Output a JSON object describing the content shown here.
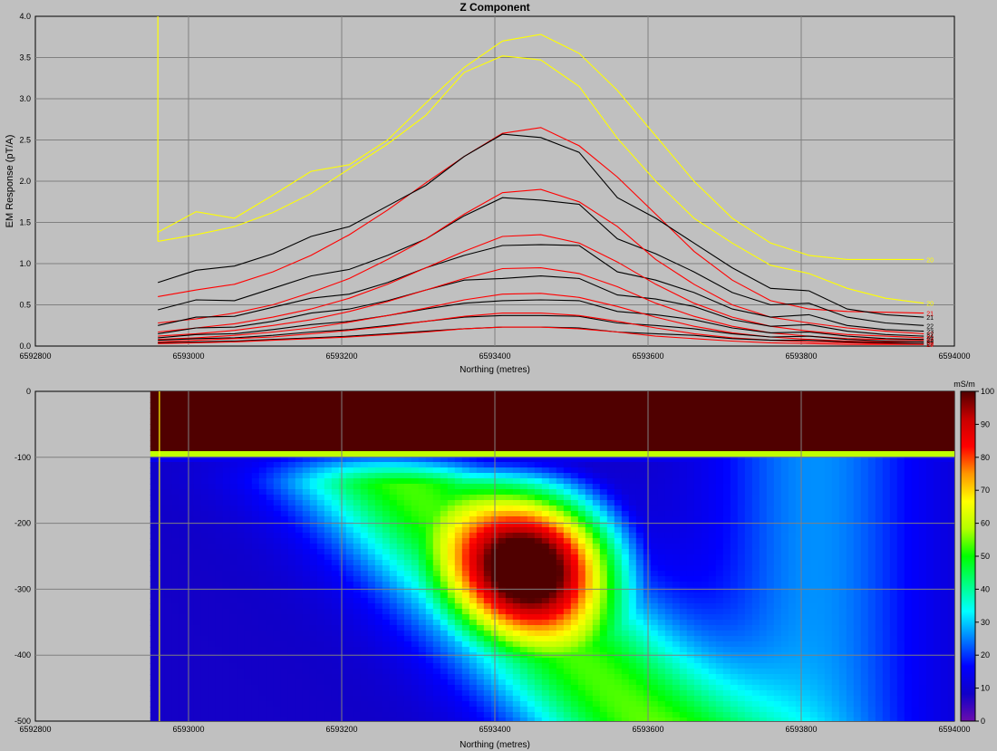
{
  "chart_data": [
    {
      "type": "line",
      "title": "Z Component",
      "xlabel": "Northing (metres)",
      "ylabel": "EM Response (pT/A)",
      "xlim": [
        6592800,
        6594000
      ],
      "ylim": [
        0,
        4.0
      ],
      "xticks": [
        6592800,
        6593000,
        6593200,
        6593400,
        6593600,
        6593800,
        6594000
      ],
      "yticks": [
        0.0,
        0.5,
        1.0,
        1.5,
        2.0,
        2.5,
        3.0,
        3.5,
        4.0
      ],
      "grid": true,
      "x": [
        6592960,
        6593010,
        6593060,
        6593110,
        6593160,
        6593210,
        6593260,
        6593310,
        6593360,
        6593410,
        6593460,
        6593510,
        6593560,
        6593610,
        6593660,
        6593710,
        6593760,
        6593810,
        6593860,
        6593910,
        6593960
      ],
      "series": [
        {
          "name": "",
          "color": "#ffff00",
          "values": [
            1.38,
            1.63,
            1.55,
            1.83,
            2.12,
            2.2,
            2.5,
            2.95,
            3.38,
            3.7,
            3.78,
            3.55,
            3.1,
            2.55,
            2.0,
            1.55,
            1.25,
            1.1,
            1.05,
            1.05,
            1.05
          ],
          "end_label": "20"
        },
        {
          "name": "",
          "color": "#ffff00",
          "values": [
            1.27,
            1.35,
            1.45,
            1.62,
            1.85,
            2.15,
            2.45,
            2.8,
            3.32,
            3.52,
            3.47,
            3.15,
            2.52,
            2.0,
            1.55,
            1.25,
            0.98,
            0.88,
            0.7,
            0.58,
            0.52
          ],
          "end_label": "20"
        },
        {
          "name": "",
          "color": "#ff0000",
          "values": [
            0.6,
            0.68,
            0.75,
            0.9,
            1.1,
            1.35,
            1.65,
            1.98,
            2.3,
            2.58,
            2.65,
            2.43,
            2.05,
            1.6,
            1.15,
            0.8,
            0.55,
            0.45,
            0.42,
            0.41,
            0.4
          ],
          "end_label": "21"
        },
        {
          "name": "",
          "color": "#000000",
          "values": [
            0.77,
            0.92,
            0.97,
            1.12,
            1.33,
            1.45,
            1.7,
            1.95,
            2.3,
            2.57,
            2.53,
            2.35,
            1.8,
            1.55,
            1.25,
            0.95,
            0.7,
            0.67,
            0.45,
            0.38,
            0.35
          ],
          "end_label": "21"
        },
        {
          "name": "",
          "color": "#000000",
          "values": [
            0.44,
            0.56,
            0.55,
            0.7,
            0.85,
            0.93,
            1.1,
            1.3,
            1.58,
            1.8,
            1.77,
            1.72,
            1.3,
            1.12,
            0.9,
            0.65,
            0.5,
            0.52,
            0.35,
            0.28,
            0.25
          ],
          "end_label": "22"
        },
        {
          "name": "",
          "color": "#ff0000",
          "values": [
            0.28,
            0.33,
            0.4,
            0.5,
            0.65,
            0.82,
            1.05,
            1.3,
            1.6,
            1.86,
            1.9,
            1.75,
            1.45,
            1.05,
            0.75,
            0.5,
            0.35,
            0.28,
            0.22,
            0.18,
            0.15
          ],
          "end_label": "22"
        },
        {
          "name": "",
          "color": "#000000",
          "values": [
            0.25,
            0.35,
            0.36,
            0.47,
            0.58,
            0.63,
            0.77,
            0.95,
            1.1,
            1.22,
            1.23,
            1.22,
            0.9,
            0.8,
            0.65,
            0.45,
            0.35,
            0.38,
            0.25,
            0.2,
            0.18
          ],
          "end_label": "23"
        },
        {
          "name": "",
          "color": "#ff0000",
          "values": [
            0.17,
            0.22,
            0.27,
            0.35,
            0.45,
            0.58,
            0.75,
            0.95,
            1.15,
            1.33,
            1.35,
            1.25,
            1.02,
            0.75,
            0.52,
            0.35,
            0.24,
            0.18,
            0.14,
            0.12,
            0.1
          ],
          "end_label": "23"
        },
        {
          "name": "",
          "color": "#000000",
          "values": [
            0.15,
            0.22,
            0.23,
            0.3,
            0.4,
            0.45,
            0.55,
            0.68,
            0.8,
            0.82,
            0.85,
            0.82,
            0.62,
            0.57,
            0.48,
            0.32,
            0.24,
            0.26,
            0.18,
            0.14,
            0.12
          ],
          "end_label": "24"
        },
        {
          "name": "",
          "color": "#ff0000",
          "values": [
            0.12,
            0.15,
            0.19,
            0.25,
            0.32,
            0.42,
            0.54,
            0.68,
            0.82,
            0.94,
            0.95,
            0.88,
            0.72,
            0.52,
            0.36,
            0.24,
            0.16,
            0.12,
            0.09,
            0.08,
            0.07
          ],
          "end_label": "24"
        },
        {
          "name": "",
          "color": "#000000",
          "values": [
            0.1,
            0.14,
            0.15,
            0.2,
            0.26,
            0.3,
            0.37,
            0.45,
            0.52,
            0.55,
            0.56,
            0.55,
            0.42,
            0.38,
            0.32,
            0.22,
            0.16,
            0.17,
            0.12,
            0.09,
            0.08
          ],
          "end_label": "25"
        },
        {
          "name": "",
          "color": "#ff0000",
          "values": [
            0.08,
            0.1,
            0.13,
            0.17,
            0.22,
            0.29,
            0.37,
            0.46,
            0.56,
            0.63,
            0.64,
            0.59,
            0.48,
            0.35,
            0.24,
            0.16,
            0.11,
            0.08,
            0.06,
            0.05,
            0.05
          ],
          "end_label": "25"
        },
        {
          "name": "",
          "color": "#000000",
          "values": [
            0.07,
            0.09,
            0.1,
            0.13,
            0.17,
            0.2,
            0.25,
            0.3,
            0.35,
            0.37,
            0.37,
            0.36,
            0.28,
            0.25,
            0.21,
            0.15,
            0.11,
            0.12,
            0.08,
            0.06,
            0.05
          ],
          "end_label": "26"
        },
        {
          "name": "",
          "color": "#ff0000",
          "values": [
            0.05,
            0.07,
            0.09,
            0.11,
            0.15,
            0.19,
            0.24,
            0.3,
            0.36,
            0.4,
            0.4,
            0.37,
            0.3,
            0.22,
            0.15,
            0.1,
            0.07,
            0.05,
            0.04,
            0.03,
            0.03
          ],
          "end_label": "26"
        },
        {
          "name": "",
          "color": "#000000",
          "values": [
            0.04,
            0.05,
            0.06,
            0.08,
            0.1,
            0.12,
            0.15,
            0.18,
            0.21,
            0.23,
            0.23,
            0.22,
            0.17,
            0.15,
            0.13,
            0.09,
            0.07,
            0.07,
            0.05,
            0.04,
            0.03
          ],
          "end_label": "27"
        },
        {
          "name": "",
          "color": "#ff0000",
          "values": [
            0.03,
            0.04,
            0.05,
            0.07,
            0.09,
            0.11,
            0.14,
            0.17,
            0.21,
            0.23,
            0.23,
            0.21,
            0.17,
            0.12,
            0.09,
            0.06,
            0.04,
            0.03,
            0.02,
            0.02,
            0.02
          ],
          "end_label": "27"
        }
      ]
    },
    {
      "type": "heatmap",
      "xlabel": "Northing (metres)",
      "ylabel": "",
      "xlim": [
        6592800,
        6594000
      ],
      "ylim": [
        -500,
        0
      ],
      "xticks": [
        6592800,
        6593000,
        6593200,
        6593400,
        6593600,
        6593800,
        6594000
      ],
      "yticks": [
        0,
        -100,
        -200,
        -300,
        -400,
        -500
      ],
      "grid": true,
      "data_xrange": [
        6592950,
        6594000
      ],
      "colorbar": {
        "unit": "mS/m",
        "range": [
          0,
          100
        ],
        "ticks": [
          0,
          10,
          20,
          30,
          40,
          50,
          60,
          70,
          80,
          90,
          100
        ],
        "colors": [
          "#6a0dad",
          "#1000c8",
          "#0000ff",
          "#0080ff",
          "#00ffff",
          "#00ff80",
          "#00ff00",
          "#b4ff00",
          "#ffff00",
          "#ff9600",
          "#ff0000",
          "#c80000",
          "#500000"
        ]
      },
      "features": {
        "surface_layer": {
          "depth_from": 0,
          "depth_to": -90,
          "conductivity": 100
        },
        "conductive_band": {
          "depth": -90,
          "conductivity": 75
        },
        "anomaly": {
          "center_x": 6593450,
          "center_depth": -260,
          "peak_conductivity": 78
        },
        "background_conductivity": 8
      }
    }
  ]
}
